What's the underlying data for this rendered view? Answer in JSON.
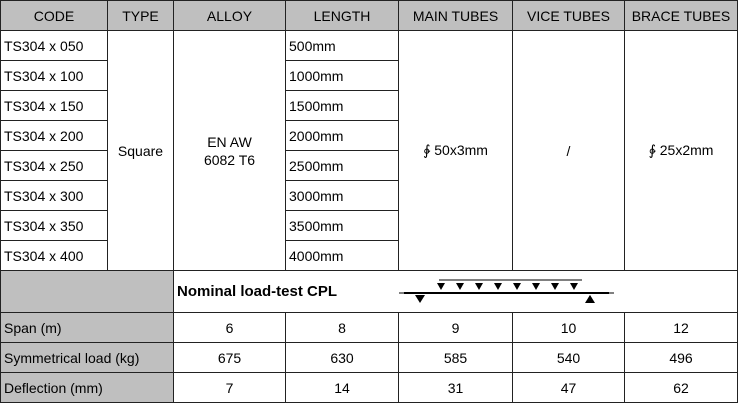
{
  "headers": [
    "CODE",
    "TYPE",
    "ALLOY",
    "LENGTH",
    "MAIN TUBES",
    "VICE TUBES",
    "BRACE TUBES"
  ],
  "rows": [
    {
      "code": "TS304 x 050",
      "length": "500mm"
    },
    {
      "code": "TS304 x 100",
      "length": "1000mm"
    },
    {
      "code": "TS304 x 150",
      "length": "1500mm"
    },
    {
      "code": "TS304 x 200",
      "length": "2000mm"
    },
    {
      "code": "TS304 x 250",
      "length": "2500mm"
    },
    {
      "code": "TS304 x 300",
      "length": "3000mm"
    },
    {
      "code": "TS304 x 350",
      "length": "3500mm"
    },
    {
      "code": "TS304 x 400",
      "length": "4000mm"
    }
  ],
  "type": "Square",
  "alloy_line1": "EN AW",
  "alloy_line2": "6082 T6",
  "main_tubes": "∲ 50x3mm",
  "vice_tubes": "/",
  "brace_tubes": "∲ 25x2mm",
  "nominal_label": "Nominal load-test CPL",
  "load_rows": [
    {
      "label": "Span  (m)",
      "values": [
        "6",
        "8",
        "9",
        "10",
        "12"
      ]
    },
    {
      "label": "Symmetrical load   (kg)",
      "values": [
        "675",
        "630",
        "585",
        "540",
        "496"
      ]
    },
    {
      "label": "Deflection (mm)",
      "values": [
        "7",
        "14",
        "31",
        "47",
        "62"
      ]
    }
  ]
}
